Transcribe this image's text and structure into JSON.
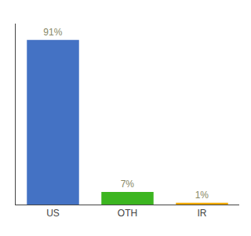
{
  "chart_data": {
    "type": "bar",
    "categories": [
      "US",
      "OTH",
      "IR"
    ],
    "values": [
      91,
      7,
      1
    ],
    "value_labels": [
      "91%",
      "7%",
      "1%"
    ],
    "colors": [
      "#4472c4",
      "#3cb520",
      "#f0a800"
    ],
    "data_labels": true,
    "ylim": [
      0,
      100
    ],
    "tick_labels": "x",
    "grid": false
  }
}
